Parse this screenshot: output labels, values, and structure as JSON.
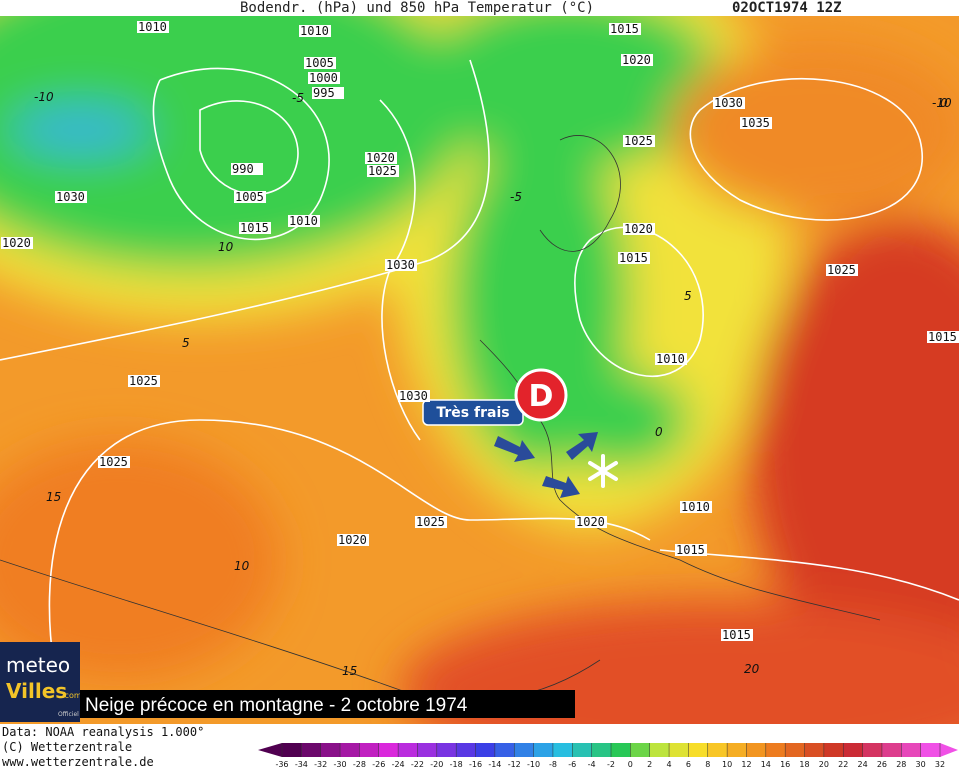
{
  "header": {
    "title": "Bodendr. (hPa) und 850 hPa Temperatur (°C)",
    "run": "02OCT1974 12Z"
  },
  "isobar_labels": [
    1010,
    1010,
    1005,
    1000,
    995,
    990,
    1005,
    1015,
    1030,
    1020,
    1020,
    1025,
    1010,
    1030,
    1025,
    1030,
    1025,
    1020,
    1025,
    1020,
    1015,
    1020,
    1030,
    1035,
    1025,
    1020,
    1015,
    1010,
    1025,
    1010,
    1015,
    1015,
    1015
  ],
  "temperature_labels": [
    -10,
    -5,
    10,
    5,
    15,
    10,
    15,
    20,
    -5,
    5,
    0,
    -10,
    0
  ],
  "overlay": {
    "marker": "D",
    "tag": "Très frais"
  },
  "caption": "Neige précoce en montagne - 2 octobre 1974",
  "logo": {
    "line1": "meteo",
    "line2": "Villes",
    "suffix": ".com",
    "note": "Officiel"
  },
  "credits": [
    "Data: NOAA reanalysis 1.000°",
    "(C) Wetterzentrale",
    "www.wetterzentrale.de"
  ],
  "legend": {
    "ticks": [
      -36,
      -34,
      -32,
      -30,
      -28,
      -26,
      -24,
      -22,
      -20,
      -18,
      -16,
      -14,
      -12,
      -10,
      -8,
      -6,
      -4,
      -2,
      0,
      2,
      4,
      6,
      8,
      10,
      12,
      14,
      16,
      18,
      20,
      22,
      24,
      26,
      28,
      30,
      32
    ]
  }
}
